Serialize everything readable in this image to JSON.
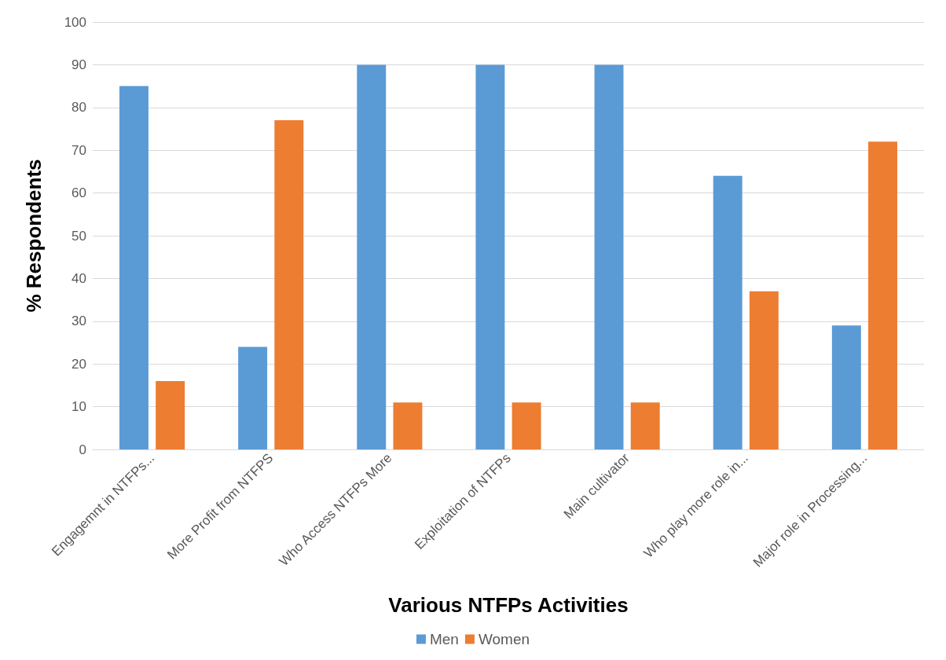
{
  "chart_data": {
    "type": "bar",
    "xlabel": "Various NTFPs Activities",
    "ylabel": "% Respondents",
    "categories": [
      "Engagemnt in NTFPs...",
      "More Profit from NTFPS",
      "Who Access NTFPs More",
      "Exploitation of NTFPs",
      "Main cultivator",
      "Who play more role in...",
      "Major role in Processing..."
    ],
    "series": [
      {
        "name": "Men",
        "color": "#5b9bd5",
        "values": [
          85,
          24,
          90,
          90,
          90,
          64,
          29
        ]
      },
      {
        "name": "Women",
        "color": "#ed7d31",
        "values": [
          16,
          77,
          11,
          11,
          11,
          37,
          72
        ]
      }
    ],
    "ylim": [
      0,
      100
    ],
    "yticks": [
      0,
      10,
      20,
      30,
      40,
      50,
      60,
      70,
      80,
      90,
      100
    ],
    "grid": "y",
    "legend": "bottom"
  }
}
